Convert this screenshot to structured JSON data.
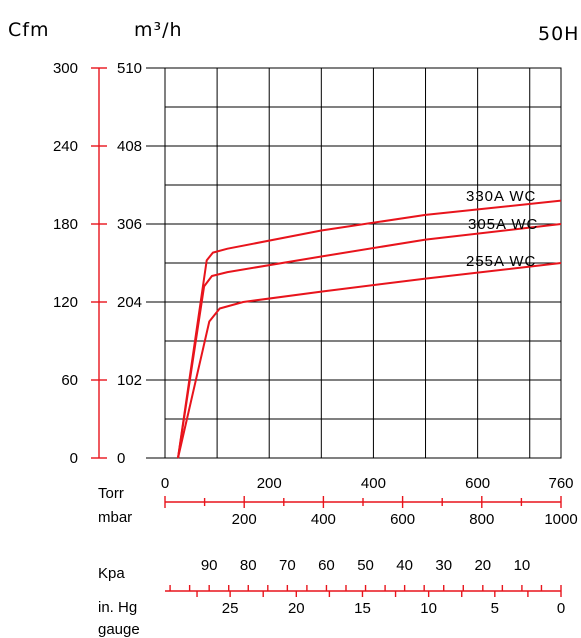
{
  "header": {
    "left_unit": "Cfm",
    "right_unit": "m³/h",
    "model": "50H"
  },
  "colors": {
    "curve": "#e8141c",
    "grid": "#000000",
    "axis_red": "#e8141c"
  },
  "chart_data": {
    "type": "line",
    "title": "",
    "x": {
      "label": "Torr",
      "range": [
        0,
        760
      ],
      "ticks": [
        0,
        200,
        400,
        600,
        760
      ]
    },
    "y_left": {
      "label": "Cfm",
      "range": [
        0,
        300
      ],
      "ticks": [
        0,
        60,
        120,
        180,
        240,
        300
      ]
    },
    "y_right": {
      "label": "m³/h",
      "range": [
        0,
        510
      ],
      "ticks": [
        0,
        102,
        204,
        306,
        408,
        510
      ]
    },
    "secondary_scales": [
      {
        "label": "mbar",
        "ticks": [
          "200",
          "400",
          "600",
          "800",
          "1000"
        ],
        "values": [
          200,
          400,
          600,
          800,
          1000
        ]
      },
      {
        "label": "Kpa",
        "ticks": [
          "90",
          "80",
          "70",
          "60",
          "50",
          "40",
          "30",
          "20",
          "10"
        ],
        "values": [
          90,
          80,
          70,
          60,
          50,
          40,
          30,
          20,
          10
        ]
      },
      {
        "label": "in. Hg gauge",
        "ticks": [
          "25",
          "20",
          "15",
          "10",
          "5",
          "0"
        ],
        "values": [
          25,
          20,
          15,
          10,
          5,
          0
        ]
      }
    ],
    "grid": true,
    "series": [
      {
        "name": "330A WC",
        "points": [
          [
            25,
            0
          ],
          [
            80,
            152
          ],
          [
            92,
            158
          ],
          [
            120,
            161
          ],
          [
            300,
            175
          ],
          [
            500,
            187
          ],
          [
            760,
            198
          ]
        ]
      },
      {
        "name": "305A WC",
        "points": [
          [
            25,
            0
          ],
          [
            75,
            132
          ],
          [
            90,
            140
          ],
          [
            120,
            143
          ],
          [
            300,
            155
          ],
          [
            500,
            168
          ],
          [
            760,
            180
          ]
        ]
      },
      {
        "name": "255A WC",
        "points": [
          [
            25,
            0
          ],
          [
            85,
            105
          ],
          [
            105,
            115
          ],
          [
            150,
            120
          ],
          [
            300,
            128
          ],
          [
            500,
            138
          ],
          [
            760,
            150
          ]
        ]
      }
    ]
  },
  "labels": {
    "torr": "Torr",
    "mbar": "mbar",
    "kpa": "Kpa",
    "inhg_1": "in. Hg",
    "inhg_2": "gauge"
  }
}
